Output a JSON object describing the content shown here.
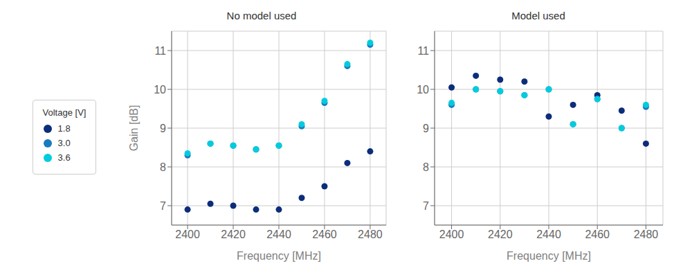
{
  "chart_data": [
    {
      "type": "scatter",
      "title": "No model used",
      "xlabel": "Frequency [MHz]",
      "ylabel": "Gain [dB]",
      "x": [
        2400,
        2410,
        2420,
        2430,
        2440,
        2450,
        2460,
        2470,
        2480
      ],
      "series": [
        {
          "name": "1.8",
          "color": "#0c2d7a",
          "values": [
            6.9,
            7.05,
            7.0,
            6.9,
            6.9,
            7.2,
            7.5,
            8.1,
            8.4
          ]
        },
        {
          "name": "3.0",
          "color": "#1a7abf",
          "values": [
            8.3,
            8.6,
            8.55,
            8.45,
            8.55,
            9.05,
            9.65,
            10.6,
            11.15
          ]
        },
        {
          "name": "3.6",
          "color": "#00ccdd",
          "values": [
            8.35,
            8.6,
            8.55,
            8.45,
            8.55,
            9.1,
            9.7,
            10.65,
            11.2
          ]
        }
      ],
      "xlim": [
        2393,
        2487
      ],
      "ylim": [
        6.5,
        11.5
      ],
      "xticks": [
        2400,
        2420,
        2440,
        2460,
        2480
      ],
      "yticks": [
        7,
        8,
        9,
        10,
        11
      ],
      "grid": true,
      "legend": "left",
      "legend_title": "Voltage [V]"
    },
    {
      "type": "scatter",
      "title": "Model used",
      "xlabel": "Frequency [MHz]",
      "x": [
        2400,
        2410,
        2420,
        2430,
        2440,
        2450,
        2460,
        2470,
        2480
      ],
      "series": [
        {
          "name": "1.8",
          "color": "#0c2d7a",
          "values": [
            10.05,
            10.35,
            10.25,
            10.2,
            9.3,
            9.6,
            9.85,
            9.45,
            8.6
          ]
        },
        {
          "name": "3.0",
          "color": "#1a7abf",
          "values": [
            9.6,
            10.0,
            9.95,
            9.85,
            10.0,
            9.1,
            9.75,
            9.0,
            9.55
          ]
        },
        {
          "name": "3.6",
          "color": "#00ccdd",
          "values": [
            9.65,
            10.0,
            9.95,
            9.85,
            10.0,
            9.1,
            9.75,
            9.0,
            9.6
          ]
        }
      ],
      "xlim": [
        2393,
        2487
      ],
      "ylim": [
        6.5,
        11.5
      ],
      "xticks": [
        2400,
        2420,
        2440,
        2460,
        2480
      ],
      "yticks": [
        7,
        8,
        9,
        10,
        11
      ],
      "grid": true
    }
  ]
}
